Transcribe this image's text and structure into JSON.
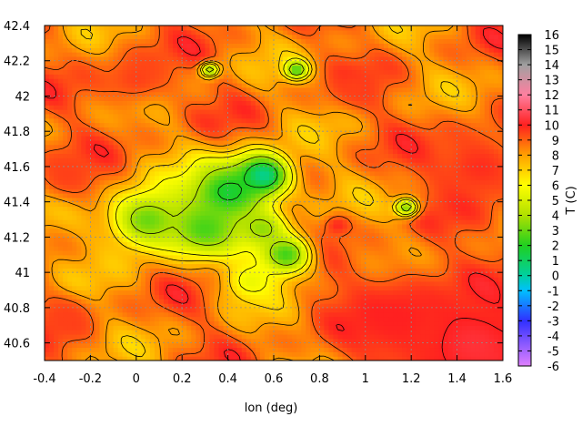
{
  "chart_data": {
    "type": "heatmap",
    "title": "",
    "xlabel": "lon (deg)",
    "ylabel": "",
    "xlim": [
      -0.4,
      1.6
    ],
    "ylim": [
      40.5,
      42.4
    ],
    "x_ticks": [
      "-0.4",
      "-0.2",
      "0",
      "0.2",
      "0.4",
      "0.6",
      "0.8",
      "1",
      "1.2",
      "1.4",
      "1.6"
    ],
    "y_ticks": [
      "40.6",
      "40.8",
      "41",
      "41.2",
      "41.4",
      "41.6",
      "41.8",
      "42",
      "42.2",
      "42.4"
    ],
    "grid": true,
    "contours": true,
    "colorbar": {
      "label": "T (C)",
      "range": [
        -6,
        16
      ],
      "ticks": [
        "-6",
        "-5",
        "-4",
        "-3",
        "-2",
        "-1",
        "0",
        "1",
        "2",
        "3",
        "4",
        "5",
        "6",
        "7",
        "8",
        "9",
        "10",
        "11",
        "12",
        "13",
        "14",
        "15",
        "16"
      ],
      "stops": [
        {
          "value": -6,
          "color": "#e080ff"
        },
        {
          "value": -3,
          "color": "#3030ff"
        },
        {
          "value": -1,
          "color": "#00c0ff"
        },
        {
          "value": 0,
          "color": "#00d0a0"
        },
        {
          "value": 2,
          "color": "#20d020"
        },
        {
          "value": 4,
          "color": "#b0e000"
        },
        {
          "value": 6,
          "color": "#ffff00"
        },
        {
          "value": 8,
          "color": "#ffa000"
        },
        {
          "value": 10,
          "color": "#ff2020"
        },
        {
          "value": 12,
          "color": "#ff80a0"
        },
        {
          "value": 14,
          "color": "#a0a0a0"
        },
        {
          "value": 16,
          "color": "#000000"
        }
      ]
    },
    "features": {
      "background_temp": 8.5,
      "cold_spots": [
        {
          "lon": 0.55,
          "lat": 41.55,
          "temp": -0.5,
          "radius": 0.12
        },
        {
          "lon": 0.4,
          "lat": 41.45,
          "temp": 1.5,
          "radius": 0.18
        },
        {
          "lon": 0.05,
          "lat": 41.3,
          "temp": 3.0,
          "radius": 0.18
        },
        {
          "lon": 0.3,
          "lat": 41.25,
          "temp": 2.5,
          "radius": 0.15
        },
        {
          "lon": 0.65,
          "lat": 41.1,
          "temp": 2.0,
          "radius": 0.12
        },
        {
          "lon": 0.55,
          "lat": 41.25,
          "temp": 3.5,
          "radius": 0.1
        },
        {
          "lon": 1.18,
          "lat": 41.37,
          "temp": 2.0,
          "radius": 0.05
        },
        {
          "lon": 0.7,
          "lat": 42.15,
          "temp": 2.0,
          "radius": 0.05
        },
        {
          "lon": 0.32,
          "lat": 42.15,
          "temp": 2.5,
          "radius": 0.04
        },
        {
          "lon": 0.5,
          "lat": 40.95,
          "temp": 5.5,
          "radius": 0.12
        }
      ],
      "warm_spots": [
        {
          "lon": 1.45,
          "lat": 40.6,
          "temp": 10.5,
          "radius": 0.3
        },
        {
          "lon": 1.15,
          "lat": 40.75,
          "temp": 10.0,
          "radius": 0.3
        },
        {
          "lon": 1.5,
          "lat": 41.6,
          "temp": 9.8,
          "radius": 0.25
        },
        {
          "lon": -0.3,
          "lat": 41.55,
          "temp": 9.5,
          "radius": 0.15
        },
        {
          "lon": -0.3,
          "lat": 40.75,
          "temp": 9.5,
          "radius": 0.12
        },
        {
          "lon": 0.0,
          "lat": 42.1,
          "temp": 9.5,
          "radius": 0.18
        },
        {
          "lon": 0.88,
          "lat": 41.27,
          "temp": 10.0,
          "radius": 0.06
        },
        {
          "lon": 0.95,
          "lat": 42.05,
          "temp": 9.5,
          "radius": 0.12
        }
      ]
    }
  }
}
